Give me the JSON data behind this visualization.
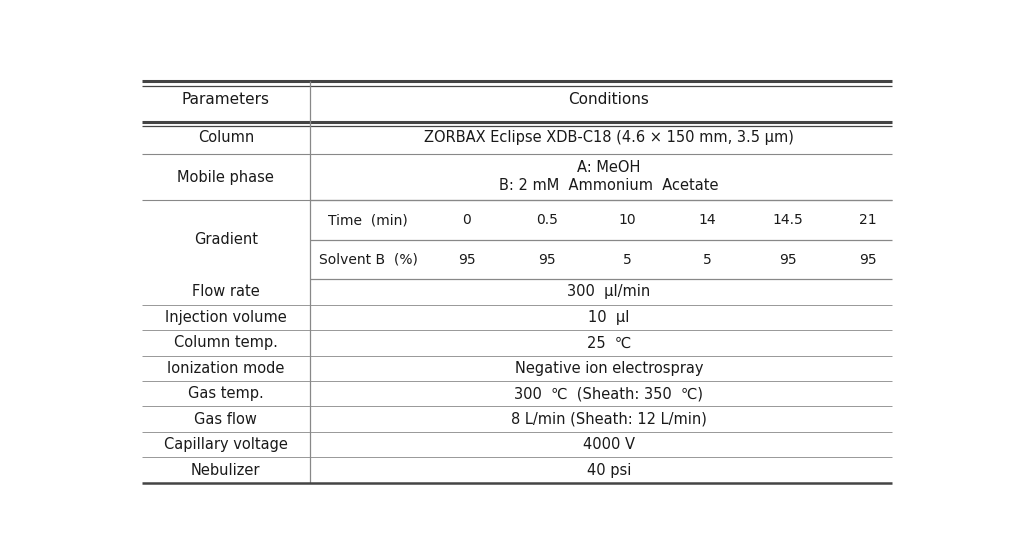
{
  "title_params": "Parameters",
  "title_conditions": "Conditions",
  "col_split": 0.235,
  "gradient_time_label": "Time  (min)",
  "gradient_time_values": [
    "0",
    "0.5",
    "10",
    "14",
    "14.5",
    "21"
  ],
  "gradient_solvent_label": "Solvent B  (%)",
  "gradient_solvent_values": [
    "95",
    "95",
    "5",
    "5",
    "95",
    "95"
  ],
  "row_params": [
    "Column",
    "Mobile phase",
    "Gradient",
    "Flow rate",
    "Injection volume",
    "Column temp.",
    "Ionization mode",
    "Gas temp.",
    "Gas flow",
    "Capillary voltage",
    "Nebulizer"
  ],
  "conditions_single": [
    "ZORBAX Eclipse XDB-C18 (4.6 × 150 mm, 3.5 μm)",
    null,
    null,
    "300  μl/min",
    "10  μl",
    "25  ℃",
    "Negative ion electrospray",
    "300  ℃  (Sheath: 350  ℃)",
    "8 L/min (Sheath: 12 L/min)",
    "4000 V",
    "40 psi"
  ],
  "mobile_phase_line1": "A: MeOH",
  "mobile_phase_line2": "B: 2 mM  Ammonium  Acetate",
  "bg_color": "#ffffff",
  "text_color": "#1a1a1a",
  "line_color_thick": "#444444",
  "line_color_thin": "#888888",
  "font_size": 10.5,
  "header_font_size": 11
}
